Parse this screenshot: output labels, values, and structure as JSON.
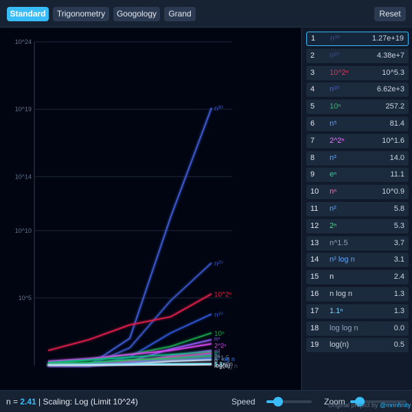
{
  "tabs": [
    {
      "label": "Standard",
      "active": true
    },
    {
      "label": "Trigonometry",
      "active": false
    },
    {
      "label": "Googology",
      "active": false
    },
    {
      "label": "Grand",
      "active": false
    }
  ],
  "reset_label": "Reset",
  "rankings": [
    {
      "rank": "1",
      "fn": "n³⁰",
      "value": "1.27e+19",
      "color": "#3a4f86"
    },
    {
      "rank": "2",
      "fn": "n²⁰",
      "value": "4.38e+7",
      "color": "#3a4f86"
    },
    {
      "rank": "3",
      "fn": "10^2ⁿ",
      "value": "10^5.3",
      "color": "#d63a5a"
    },
    {
      "rank": "4",
      "fn": "n¹⁰",
      "value": "6.62e+3",
      "color": "#4a65c8"
    },
    {
      "rank": "5",
      "fn": "10ⁿ",
      "value": "257.2",
      "color": "#22c55e"
    },
    {
      "rank": "6",
      "fn": "n⁵",
      "value": "81.4",
      "color": "#60a5fa"
    },
    {
      "rank": "7",
      "fn": "2^2ⁿ",
      "value": "10^1.6",
      "color": "#e879f9"
    },
    {
      "rank": "8",
      "fn": "n³",
      "value": "14.0",
      "color": "#60a5fa"
    },
    {
      "rank": "9",
      "fn": "eⁿ",
      "value": "11.1",
      "color": "#34d399"
    },
    {
      "rank": "10",
      "fn": "nⁿ",
      "value": "10^0.9",
      "color": "#f472b6"
    },
    {
      "rank": "11",
      "fn": "n²",
      "value": "5.8",
      "color": "#60a5fa"
    },
    {
      "rank": "12",
      "fn": "2ⁿ",
      "value": "5.3",
      "color": "#4ade80"
    },
    {
      "rank": "13",
      "fn": "n^1.5",
      "value": "3.7",
      "color": "#94a3b8"
    },
    {
      "rank": "14",
      "fn": "n² log n",
      "value": "3.1",
      "color": "#60a5fa"
    },
    {
      "rank": "15",
      "fn": "n",
      "value": "2.4",
      "color": "#e2e8f0"
    },
    {
      "rank": "16",
      "fn": "n log n",
      "value": "1.3",
      "color": "#cbd5e1"
    },
    {
      "rank": "17",
      "fn": "1.1ⁿ",
      "value": "1.3",
      "color": "#7dd3fc"
    },
    {
      "rank": "18",
      "fn": "log log n",
      "value": "0.0",
      "color": "#94a3b8"
    },
    {
      "rank": "19",
      "fn": "log(n)",
      "value": "0.5",
      "color": "#cbd5e1"
    }
  ],
  "status": {
    "n_prefix": "n = ",
    "n_value": "2.41",
    "scaling_text": " | Scaling: Log (Limit 10^24)"
  },
  "controls": {
    "speed_label": "Speed",
    "speed_value": 0.25,
    "zoom_label": "Zoom",
    "zoom_value": 0.1
  },
  "credit": {
    "prefix": "Original project by ",
    "handle": "@mrinfinity"
  },
  "chart_data": {
    "type": "line",
    "y_scale": "log",
    "ylim": [
      1,
      1e+24
    ],
    "y_ticks": [
      "10^24",
      "10^19",
      "10^14",
      "10^10",
      "10^5"
    ],
    "series": [
      {
        "name": "n³⁰",
        "color": "#3f5bd8",
        "points": [
          [
            0,
            0.0
          ],
          [
            1,
            0.0
          ],
          [
            2,
            2.0
          ],
          [
            3,
            11.0
          ],
          [
            4,
            19.1
          ]
        ]
      },
      {
        "name": "n²⁰",
        "color": "#3a55c8",
        "points": [
          [
            0,
            0.0
          ],
          [
            1,
            0.0
          ],
          [
            2,
            1.3
          ],
          [
            3,
            4.8
          ],
          [
            4,
            7.6
          ]
        ]
      },
      {
        "name": "10^2ⁿ",
        "color": "#e11d48",
        "points": [
          [
            0,
            1.1
          ],
          [
            1,
            1.9
          ],
          [
            2,
            3.0
          ],
          [
            3,
            3.6
          ],
          [
            4,
            5.3
          ]
        ]
      },
      {
        "name": "n¹⁰",
        "color": "#2f55d6",
        "points": [
          [
            0,
            0.0
          ],
          [
            1,
            0.0
          ],
          [
            2,
            0.6
          ],
          [
            3,
            2.4
          ],
          [
            4,
            3.8
          ]
        ]
      },
      {
        "name": "10ⁿ",
        "color": "#16a34a",
        "points": [
          [
            0,
            0.1
          ],
          [
            1,
            0.4
          ],
          [
            2,
            0.8
          ],
          [
            3,
            1.4
          ],
          [
            4,
            2.4
          ]
        ]
      },
      {
        "name": "n⁵",
        "color": "#8b5cf6",
        "points": [
          [
            0,
            0.0
          ],
          [
            1,
            0.0
          ],
          [
            2,
            0.3
          ],
          [
            3,
            1.2
          ],
          [
            4,
            1.9
          ]
        ]
      },
      {
        "name": "2^2ⁿ",
        "color": "#d946ef",
        "points": [
          [
            0,
            0.3
          ],
          [
            1,
            0.5
          ],
          [
            2,
            0.8
          ],
          [
            3,
            1.1
          ],
          [
            4,
            1.6
          ]
        ]
      },
      {
        "name": "n³",
        "color": "#a855f7",
        "points": [
          [
            0,
            0.0
          ],
          [
            1,
            0.0
          ],
          [
            2,
            0.2
          ],
          [
            3,
            0.7
          ],
          [
            4,
            1.1
          ]
        ]
      },
      {
        "name": "eⁿ",
        "color": "#10b981",
        "points": [
          [
            0,
            0.2
          ],
          [
            1,
            0.4
          ],
          [
            2,
            0.6
          ],
          [
            3,
            0.8
          ],
          [
            4,
            1.0
          ]
        ]
      },
      {
        "name": "nⁿ",
        "color": "#ec4899",
        "points": [
          [
            0,
            0.0
          ],
          [
            1,
            0.0
          ],
          [
            2,
            0.3
          ],
          [
            3,
            0.6
          ],
          [
            4,
            0.9
          ]
        ]
      },
      {
        "name": "n²",
        "color": "#6366f1",
        "points": [
          [
            0,
            0.0
          ],
          [
            1,
            0.0
          ],
          [
            2,
            0.2
          ],
          [
            3,
            0.5
          ],
          [
            4,
            0.8
          ]
        ]
      },
      {
        "name": "2ⁿ",
        "color": "#22c55e",
        "points": [
          [
            0,
            0.1
          ],
          [
            1,
            0.2
          ],
          [
            2,
            0.4
          ],
          [
            3,
            0.5
          ],
          [
            4,
            0.7
          ]
        ]
      },
      {
        "name": "n^1.5",
        "color": "#64748b",
        "points": [
          [
            0,
            0.0
          ],
          [
            1,
            0.0
          ],
          [
            2,
            0.1
          ],
          [
            3,
            0.4
          ],
          [
            4,
            0.6
          ]
        ]
      },
      {
        "name": "n² log n",
        "color": "#3b82f6",
        "points": [
          [
            0,
            0.0
          ],
          [
            1,
            0.0
          ],
          [
            2,
            0.1
          ],
          [
            3,
            0.3
          ],
          [
            4,
            0.5
          ]
        ]
      },
      {
        "name": "n",
        "color": "#cbd5e1",
        "points": [
          [
            0,
            0.0
          ],
          [
            1,
            0.0
          ],
          [
            2,
            0.1
          ],
          [
            3,
            0.3
          ],
          [
            4,
            0.4
          ]
        ]
      },
      {
        "name": "n log n",
        "color": "#94a3b8",
        "points": [
          [
            0,
            0.0
          ],
          [
            1,
            0.0
          ],
          [
            2,
            0.05
          ],
          [
            3,
            0.1
          ],
          [
            4,
            0.15
          ]
        ]
      },
      {
        "name": "1.1ⁿ",
        "color": "#67e8f9",
        "points": [
          [
            0,
            0.0
          ],
          [
            1,
            0.05
          ],
          [
            2,
            0.08
          ],
          [
            3,
            0.1
          ],
          [
            4,
            0.12
          ]
        ]
      },
      {
        "name": "log log n",
        "color": "#475569",
        "points": [
          [
            0,
            0.0
          ],
          [
            1,
            0.0
          ],
          [
            2,
            0.0
          ],
          [
            3,
            0.0
          ],
          [
            4,
            0.0
          ]
        ]
      },
      {
        "name": "log(n)",
        "color": "#e2e8f0",
        "points": [
          [
            0,
            0.0
          ],
          [
            1,
            0.0
          ],
          [
            2,
            0.0
          ],
          [
            3,
            0.0
          ],
          [
            4,
            0.05
          ]
        ]
      }
    ]
  }
}
